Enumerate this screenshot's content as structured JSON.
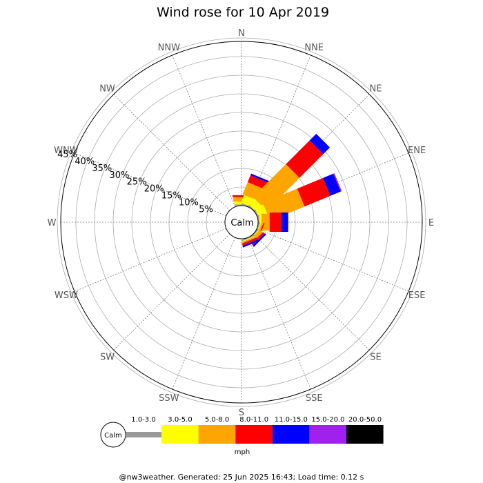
{
  "chart_data": {
    "type": "wind-rose",
    "title": "Wind rose for 10 Apr 2019",
    "calm_label": "Calm",
    "directions": [
      "N",
      "NNE",
      "NE",
      "ENE",
      "E",
      "ESE",
      "SE",
      "SSE",
      "S",
      "SSW",
      "SW",
      "WSW",
      "W",
      "WNW",
      "NW",
      "NNW"
    ],
    "ring_labels": [
      "5%",
      "10%",
      "15%",
      "20%",
      "25%",
      "30%",
      "35%",
      "40%",
      "45%"
    ],
    "ring_values": [
      5,
      10,
      15,
      20,
      25,
      30,
      35,
      40,
      45
    ],
    "speed_bins": [
      {
        "label": "1.0-3.0",
        "color": "#999999"
      },
      {
        "label": "3.0-5.0",
        "color": "#ffff00"
      },
      {
        "label": "5.0-8.0",
        "color": "#ffa500"
      },
      {
        "label": "8.0-11.0",
        "color": "#ff0000"
      },
      {
        "label": "11.0-15.0",
        "color": "#0000ff"
      },
      {
        "label": "15.0-20.0",
        "color": "#a020f0"
      },
      {
        "label": "20.0-50.0",
        "color": "#000000"
      }
    ],
    "unit_label": "mph",
    "series": [
      {
        "direction": "N",
        "values": [
          0.3,
          0.8,
          1.2,
          0.5,
          0,
          0,
          0
        ]
      },
      {
        "direction": "NNE",
        "values": [
          0.3,
          2.3,
          3.5,
          2.0,
          0.5,
          0,
          0
        ]
      },
      {
        "direction": "NE",
        "values": [
          0.3,
          2.2,
          12.5,
          9.0,
          2.5,
          0,
          0
        ]
      },
      {
        "direction": "ENE",
        "values": [
          0.3,
          2.5,
          10.0,
          7.5,
          3.0,
          0.3,
          0
        ]
      },
      {
        "direction": "E",
        "values": [
          0.3,
          0.6,
          2.2,
          3.2,
          1.8,
          0,
          0
        ]
      },
      {
        "direction": "ESE",
        "values": [
          0.3,
          0.3,
          0.5,
          0.3,
          0,
          0,
          0
        ]
      },
      {
        "direction": "SE",
        "values": [
          0.3,
          0.2,
          1.0,
          0.6,
          0.5,
          0,
          0
        ]
      },
      {
        "direction": "SSE",
        "values": [
          0.3,
          0.2,
          0.4,
          0.6,
          0.5,
          0,
          0
        ]
      }
    ]
  },
  "footer": "@nw3weather. Generated: 25 Jun 2025 16:43; Load time: 0.12 s"
}
